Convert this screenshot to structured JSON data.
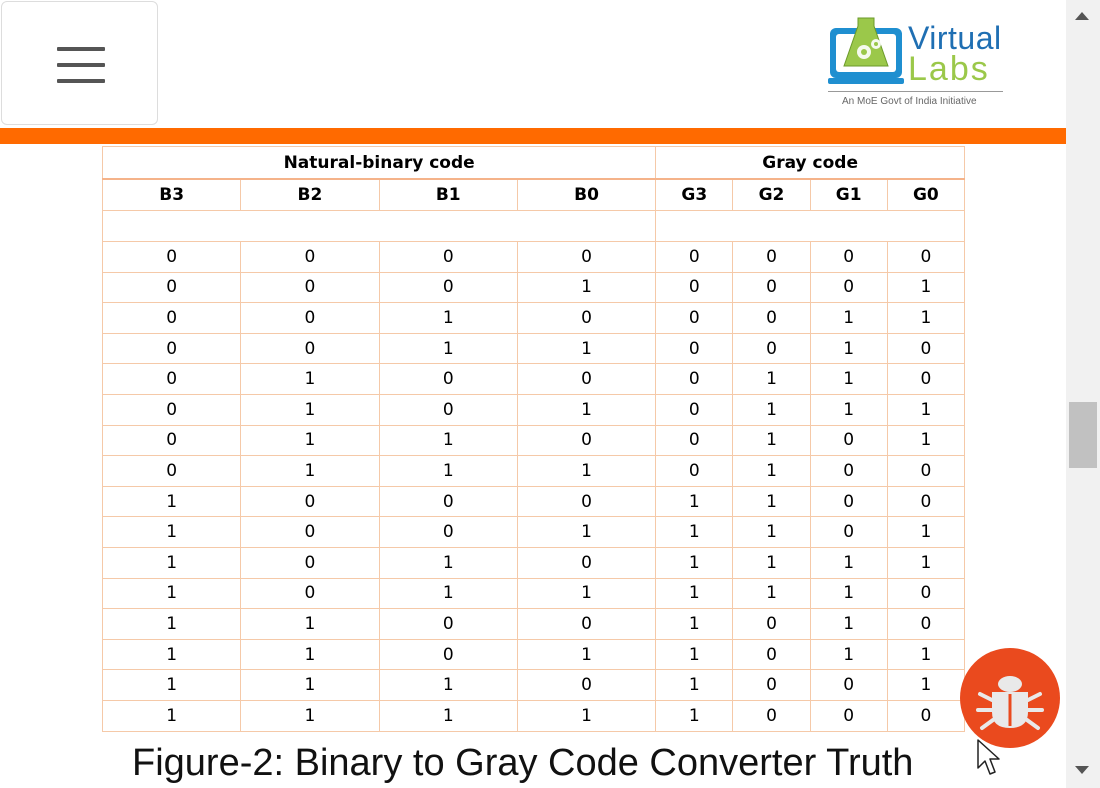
{
  "header": {
    "menu_icon": "hamburger-menu-icon",
    "logo": {
      "word1": "Virtual",
      "word2": "Labs",
      "tagline": "An MoE Govt of India Initiative"
    }
  },
  "colors": {
    "accent_bar": "#ff6a00",
    "bug_button": "#ea4a1e",
    "table_border": "#f5c9a8"
  },
  "table": {
    "group_headers": [
      "Natural-binary code",
      "Gray code"
    ],
    "columns": [
      "B3",
      "B2",
      "B1",
      "B0",
      "G3",
      "G2",
      "G1",
      "G0"
    ],
    "rows": [
      [
        "0",
        "0",
        "0",
        "0",
        "0",
        "0",
        "0",
        "0"
      ],
      [
        "0",
        "0",
        "0",
        "1",
        "0",
        "0",
        "0",
        "1"
      ],
      [
        "0",
        "0",
        "1",
        "0",
        "0",
        "0",
        "1",
        "1"
      ],
      [
        "0",
        "0",
        "1",
        "1",
        "0",
        "0",
        "1",
        "0"
      ],
      [
        "0",
        "1",
        "0",
        "0",
        "0",
        "1",
        "1",
        "0"
      ],
      [
        "0",
        "1",
        "0",
        "1",
        "0",
        "1",
        "1",
        "1"
      ],
      [
        "0",
        "1",
        "1",
        "0",
        "0",
        "1",
        "0",
        "1"
      ],
      [
        "0",
        "1",
        "1",
        "1",
        "0",
        "1",
        "0",
        "0"
      ],
      [
        "1",
        "0",
        "0",
        "0",
        "1",
        "1",
        "0",
        "0"
      ],
      [
        "1",
        "0",
        "0",
        "1",
        "1",
        "1",
        "0",
        "1"
      ],
      [
        "1",
        "0",
        "1",
        "0",
        "1",
        "1",
        "1",
        "1"
      ],
      [
        "1",
        "0",
        "1",
        "1",
        "1",
        "1",
        "1",
        "0"
      ],
      [
        "1",
        "1",
        "0",
        "0",
        "1",
        "0",
        "1",
        "0"
      ],
      [
        "1",
        "1",
        "0",
        "1",
        "1",
        "0",
        "1",
        "1"
      ],
      [
        "1",
        "1",
        "1",
        "0",
        "1",
        "0",
        "0",
        "1"
      ],
      [
        "1",
        "1",
        "1",
        "1",
        "1",
        "0",
        "0",
        "0"
      ]
    ]
  },
  "caption": "Figure-2: Binary to Gray Code Converter Truth",
  "bug_report_icon": "bug-icon"
}
